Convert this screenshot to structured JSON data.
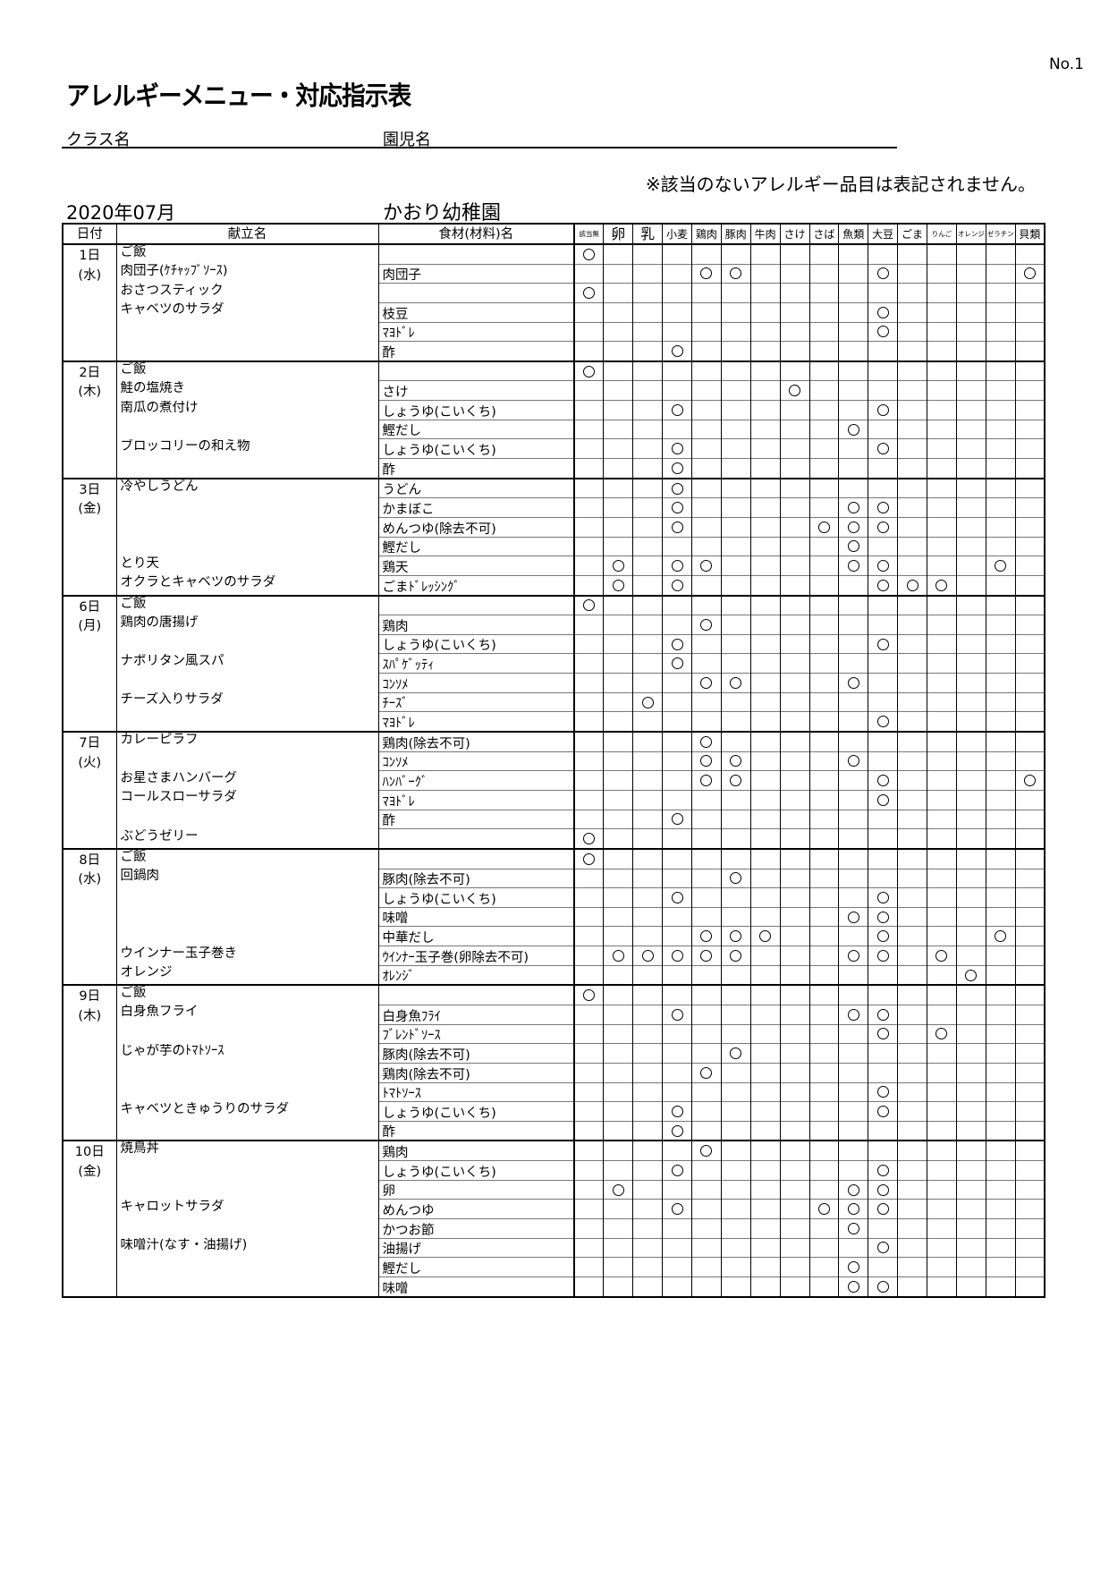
{
  "doc_no": "No.1",
  "title": "アレルギーメニュー・対応指示表",
  "class_label": "クラス名",
  "child_label": "園児名",
  "note": "※該当のないアレルギー品目は表記されません。",
  "month": "2020年07月",
  "school": "かおり幼稚園",
  "headers": {
    "date": "日付",
    "menu": "献立名",
    "ingredient": "食材(材料)名"
  },
  "allergens": [
    "該当無",
    "卵",
    "乳",
    "小麦",
    "鶏肉",
    "豚肉",
    "牛肉",
    "さけ",
    "さば",
    "魚類",
    "大豆",
    "ごま",
    "りんご",
    "オレンジ",
    "ゼラチン",
    "貝類"
  ],
  "mark_symbol": "○",
  "days": [
    {
      "day": "1日",
      "weekday": "(水)",
      "rows": [
        {
          "menu": "ご飯",
          "ingredient": "",
          "marks": [
            "該当無"
          ]
        },
        {
          "menu": "肉団子(ｹﾁｬｯﾌﾟｿｰｽ)",
          "ingredient": "肉団子",
          "marks": [
            "鶏肉",
            "豚肉",
            "大豆",
            "貝類"
          ]
        },
        {
          "menu": "おさつスティック",
          "ingredient": "",
          "marks": [
            "該当無"
          ]
        },
        {
          "menu": "キャベツのサラダ",
          "ingredient": "枝豆",
          "marks": [
            "大豆"
          ]
        },
        {
          "menu": "",
          "ingredient": "ﾏﾖﾄﾞﾚ",
          "marks": [
            "大豆"
          ]
        },
        {
          "menu": "",
          "ingredient": "酢",
          "marks": [
            "小麦"
          ]
        }
      ]
    },
    {
      "day": "2日",
      "weekday": "(木)",
      "rows": [
        {
          "menu": "ご飯",
          "ingredient": "",
          "marks": [
            "該当無"
          ]
        },
        {
          "menu": "鮭の塩焼き",
          "ingredient": "さけ",
          "marks": [
            "さけ"
          ]
        },
        {
          "menu": "南瓜の煮付け",
          "ingredient": "しょうゆ(こいくち)",
          "marks": [
            "小麦",
            "大豆"
          ]
        },
        {
          "menu": "",
          "ingredient": "鰹だし",
          "marks": [
            "魚類"
          ]
        },
        {
          "menu": "ブロッコリーの和え物",
          "ingredient": "しょうゆ(こいくち)",
          "marks": [
            "小麦",
            "大豆"
          ]
        },
        {
          "menu": "",
          "ingredient": "酢",
          "marks": [
            "小麦"
          ]
        }
      ]
    },
    {
      "day": "3日",
      "weekday": "(金)",
      "rows": [
        {
          "menu": "冷やしうどん",
          "ingredient": "うどん",
          "marks": [
            "小麦"
          ]
        },
        {
          "menu": "",
          "ingredient": "かまぼこ",
          "marks": [
            "小麦",
            "魚類",
            "大豆"
          ]
        },
        {
          "menu": "",
          "ingredient": "めんつゆ(除去不可)",
          "marks": [
            "小麦",
            "さば",
            "魚類",
            "大豆"
          ]
        },
        {
          "menu": "",
          "ingredient": "鰹だし",
          "marks": [
            "魚類"
          ]
        },
        {
          "menu": "とり天",
          "ingredient": "鶏天",
          "marks": [
            "卵",
            "小麦",
            "鶏肉",
            "魚類",
            "大豆",
            "ゼラチン"
          ]
        },
        {
          "menu": "オクラとキャベツのサラダ",
          "ingredient": "ごまﾄﾞﾚｯｼﾝｸﾞ",
          "marks": [
            "卵",
            "小麦",
            "大豆",
            "ごま",
            "りんご"
          ]
        }
      ]
    },
    {
      "day": "6日",
      "weekday": "(月)",
      "rows": [
        {
          "menu": "ご飯",
          "ingredient": "",
          "marks": [
            "該当無"
          ]
        },
        {
          "menu": "鶏肉の唐揚げ",
          "ingredient": "鶏肉",
          "marks": [
            "鶏肉"
          ]
        },
        {
          "menu": "",
          "ingredient": "しょうゆ(こいくち)",
          "marks": [
            "小麦",
            "大豆"
          ]
        },
        {
          "menu": "ナポリタン風スパ",
          "ingredient": "ｽﾊﾟｹﾞｯﾃｨ",
          "marks": [
            "小麦"
          ]
        },
        {
          "menu": "",
          "ingredient": "ｺﾝｿﾒ",
          "marks": [
            "鶏肉",
            "豚肉",
            "魚類"
          ]
        },
        {
          "menu": "チーズ入りサラダ",
          "ingredient": "ﾁｰｽﾞ",
          "marks": [
            "乳"
          ]
        },
        {
          "menu": "",
          "ingredient": "ﾏﾖﾄﾞﾚ",
          "marks": [
            "大豆"
          ]
        }
      ]
    },
    {
      "day": "7日",
      "weekday": "(火)",
      "rows": [
        {
          "menu": "カレーピラフ",
          "ingredient": "鶏肉(除去不可)",
          "marks": [
            "鶏肉"
          ]
        },
        {
          "menu": "",
          "ingredient": "ｺﾝｿﾒ",
          "marks": [
            "鶏肉",
            "豚肉",
            "魚類"
          ]
        },
        {
          "menu": "お星さまハンバーグ",
          "ingredient": "ﾊﾝﾊﾞｰｸﾞ",
          "marks": [
            "鶏肉",
            "豚肉",
            "大豆",
            "貝類"
          ]
        },
        {
          "menu": "コールスローサラダ",
          "ingredient": "ﾏﾖﾄﾞﾚ",
          "marks": [
            "大豆"
          ]
        },
        {
          "menu": "",
          "ingredient": "酢",
          "marks": [
            "小麦"
          ]
        },
        {
          "menu": "ぶどうゼリー",
          "ingredient": "",
          "marks": [
            "該当無"
          ]
        }
      ]
    },
    {
      "day": "8日",
      "weekday": "(水)",
      "rows": [
        {
          "menu": "ご飯",
          "ingredient": "",
          "marks": [
            "該当無"
          ]
        },
        {
          "menu": "回鍋肉",
          "ingredient": "豚肉(除去不可)",
          "marks": [
            "豚肉"
          ]
        },
        {
          "menu": "",
          "ingredient": "しょうゆ(こいくち)",
          "marks": [
            "小麦",
            "大豆"
          ]
        },
        {
          "menu": "",
          "ingredient": "味噌",
          "marks": [
            "魚類",
            "大豆"
          ]
        },
        {
          "menu": "",
          "ingredient": "中華だし",
          "marks": [
            "鶏肉",
            "豚肉",
            "牛肉",
            "大豆",
            "ゼラチン"
          ]
        },
        {
          "menu": "ウインナー玉子巻き",
          "ingredient": "ｳｲﾝﾅｰ玉子巻(卵除去不可)",
          "marks": [
            "卵",
            "乳",
            "小麦",
            "鶏肉",
            "豚肉",
            "魚類",
            "大豆",
            "りんご"
          ]
        },
        {
          "menu": "オレンジ",
          "ingredient": "ｵﾚﾝｼﾞ",
          "marks": [
            "オレンジ"
          ]
        }
      ]
    },
    {
      "day": "9日",
      "weekday": "(木)",
      "rows": [
        {
          "menu": "ご飯",
          "ingredient": "",
          "marks": [
            "該当無"
          ]
        },
        {
          "menu": "白身魚フライ",
          "ingredient": "白身魚ﾌﾗｲ",
          "marks": [
            "小麦",
            "魚類",
            "大豆"
          ]
        },
        {
          "menu": "",
          "ingredient": "ﾌﾞﾚﾝﾄﾞｿｰｽ",
          "marks": [
            "大豆",
            "りんご"
          ]
        },
        {
          "menu": "じゃが芋のﾄﾏﾄｿｰｽ",
          "ingredient": "豚肉(除去不可)",
          "marks": [
            "豚肉"
          ]
        },
        {
          "menu": "",
          "ingredient": "鶏肉(除去不可)",
          "marks": [
            "鶏肉"
          ]
        },
        {
          "menu": "",
          "ingredient": "ﾄﾏﾄｿｰｽ",
          "marks": [
            "大豆"
          ]
        },
        {
          "menu": "キャベツときゅうりのサラダ",
          "ingredient": "しょうゆ(こいくち)",
          "marks": [
            "小麦",
            "大豆"
          ]
        },
        {
          "menu": "",
          "ingredient": "酢",
          "marks": [
            "小麦"
          ]
        }
      ]
    },
    {
      "day": "10日",
      "weekday": "(金)",
      "rows": [
        {
          "menu": "焼鳥丼",
          "ingredient": "鶏肉",
          "marks": [
            "鶏肉"
          ]
        },
        {
          "menu": "",
          "ingredient": "しょうゆ(こいくち)",
          "marks": [
            "小麦",
            "大豆"
          ]
        },
        {
          "menu": "",
          "ingredient": "卵",
          "marks": [
            "卵",
            "魚類",
            "大豆"
          ]
        },
        {
          "menu": "キャロットサラダ",
          "ingredient": "めんつゆ",
          "marks": [
            "小麦",
            "さば",
            "魚類",
            "大豆"
          ]
        },
        {
          "menu": "",
          "ingredient": "かつお節",
          "marks": [
            "魚類"
          ]
        },
        {
          "menu": "味噌汁(なす・油揚げ)",
          "ingredient": "油揚げ",
          "marks": [
            "大豆"
          ]
        },
        {
          "menu": "",
          "ingredient": "鰹だし",
          "marks": [
            "魚類"
          ]
        },
        {
          "menu": "",
          "ingredient": "味噌",
          "marks": [
            "魚類",
            "大豆"
          ]
        }
      ]
    }
  ]
}
